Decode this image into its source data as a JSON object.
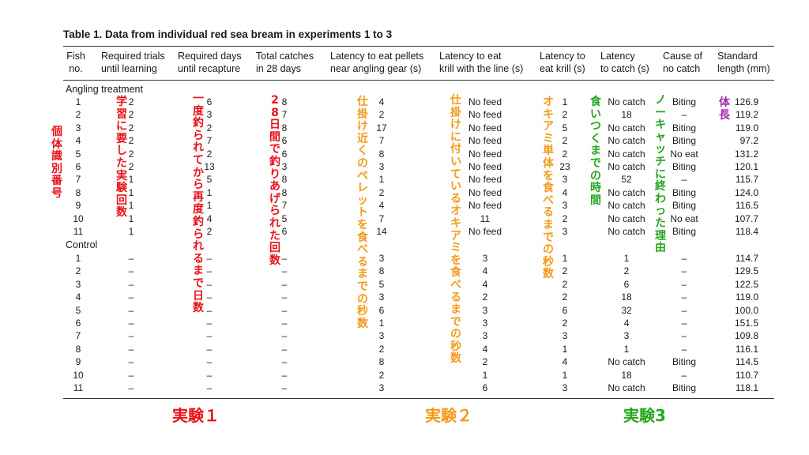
{
  "title": "Table 1.  Data from individual red sea bream in experiments 1 to 3",
  "headers": {
    "fish": [
      "Fish",
      "no."
    ],
    "trials": [
      "Required trials",
      "until learning"
    ],
    "days": [
      "Required days",
      "until recapture"
    ],
    "catches": [
      "Total catches",
      "in 28 days"
    ],
    "pellets": [
      "Latency to eat pellets",
      "near angling gear (s)"
    ],
    "krill_line": [
      "Latency to eat",
      "krill with the line (s)"
    ],
    "krill": [
      "Latency to",
      "eat krill (s)"
    ],
    "catch": [
      "Latency",
      "to catch (s)"
    ],
    "cause": [
      "Cause of",
      "no catch"
    ],
    "length": [
      "Standard",
      "length (mm)"
    ]
  },
  "sections": {
    "angling": "Angling treatment",
    "control": "Control"
  },
  "angling_rows": {
    "fish": [
      "1",
      "2",
      "3",
      "4",
      "5",
      "6",
      "7",
      "8",
      "9",
      "10",
      "11"
    ],
    "trials": [
      "2",
      "2",
      "2",
      "2",
      "2",
      "2",
      "1",
      "1",
      "1",
      "1",
      "1"
    ],
    "days": [
      "6",
      "3",
      "2",
      "7",
      "2",
      "13",
      "5",
      "1",
      "1",
      "4",
      "2"
    ],
    "catches": [
      "8",
      "7",
      "8",
      "6",
      "6",
      "3",
      "8",
      "8",
      "7",
      "5",
      "6"
    ],
    "pellets": [
      "4",
      "2",
      "17",
      "7",
      "8",
      "3",
      "1",
      "2",
      "4",
      "7",
      "14"
    ],
    "krill_line": [
      "No feed",
      "No feed",
      "No feed",
      "No feed",
      "No feed",
      "No feed",
      "No feed",
      "No feed",
      "No feed",
      "11",
      "No feed"
    ],
    "krill": [
      "1",
      "2",
      "5",
      "2",
      "2",
      "23",
      "3",
      "4",
      "3",
      "2",
      "3"
    ],
    "catch": [
      "No catch",
      "18",
      "No catch",
      "No catch",
      "No catch",
      "No catch",
      "52",
      "No catch",
      "No catch",
      "No catch",
      "No catch"
    ],
    "cause": [
      "Biting",
      "–",
      "Biting",
      "Biting",
      "No eat",
      "Biting",
      "–",
      "Biting",
      "Biting",
      "No eat",
      "Biting"
    ],
    "length": [
      "126.9",
      "119.2",
      "119.0",
      "97.2",
      "131.2",
      "120.1",
      "115.7",
      "124.0",
      "116.5",
      "107.7",
      "118.4"
    ]
  },
  "control_rows": {
    "fish": [
      "1",
      "2",
      "3",
      "4",
      "5",
      "6",
      "7",
      "8",
      "9",
      "10",
      "11"
    ],
    "trials": [
      "–",
      "–",
      "–",
      "–",
      "–",
      "–",
      "–",
      "–",
      "–",
      "–",
      "–"
    ],
    "days": [
      "–",
      "–",
      "–",
      "–",
      "–",
      "–",
      "–",
      "–",
      "–",
      "–",
      "–"
    ],
    "catches": [
      "–",
      "–",
      "–",
      "–",
      "–",
      "–",
      "–",
      "–",
      "–",
      "–",
      "–"
    ],
    "pellets": [
      "3",
      "8",
      "5",
      "3",
      "6",
      "1",
      "3",
      "2",
      "8",
      "2",
      "3"
    ],
    "krill_line": [
      "3",
      "4",
      "4",
      "2",
      "3",
      "3",
      "3",
      "4",
      "2",
      "1",
      "6"
    ],
    "krill": [
      "1",
      "2",
      "2",
      "2",
      "6",
      "2",
      "3",
      "1",
      "4",
      "1",
      "3"
    ],
    "catch": [
      "1",
      "2",
      "6",
      "18",
      "32",
      "4",
      "3",
      "1",
      "No catch",
      "18",
      "No catch"
    ],
    "cause": [
      "–",
      "–",
      "–",
      "–",
      "–",
      "–",
      "–",
      "–",
      "Biting",
      "–",
      "Biting"
    ],
    "length": [
      "114.7",
      "129.5",
      "122.5",
      "119.0",
      "100.0",
      "151.5",
      "109.8",
      "116.1",
      "114.5",
      "110.7",
      "118.1"
    ]
  },
  "annotations": {
    "fish_id": "個体識別番号",
    "trials": "学習に要した実験回数",
    "days": "一度釣られてから再度釣られるまで日数",
    "catches": "28日間で釣りあげられた回数",
    "pellets": "仕掛け近くのペレットを食べるまでの秒数",
    "krill_line": "仕掛けに付いているオキアミを食べるまでの秒数",
    "krill": "オキアミ単体を食べるまでの秒数",
    "catch": "食いつくまでの時間",
    "cause": "ノーキャッチに終わった理由",
    "length": "体長"
  },
  "experiments": {
    "exp1": "実験１",
    "exp2": "実験２",
    "exp3": "実験3"
  },
  "colors": {
    "exp1": "#e8121a",
    "exp2": "#f39a1a",
    "exp3": "#24a61e",
    "length_note": "#a12bb0"
  }
}
